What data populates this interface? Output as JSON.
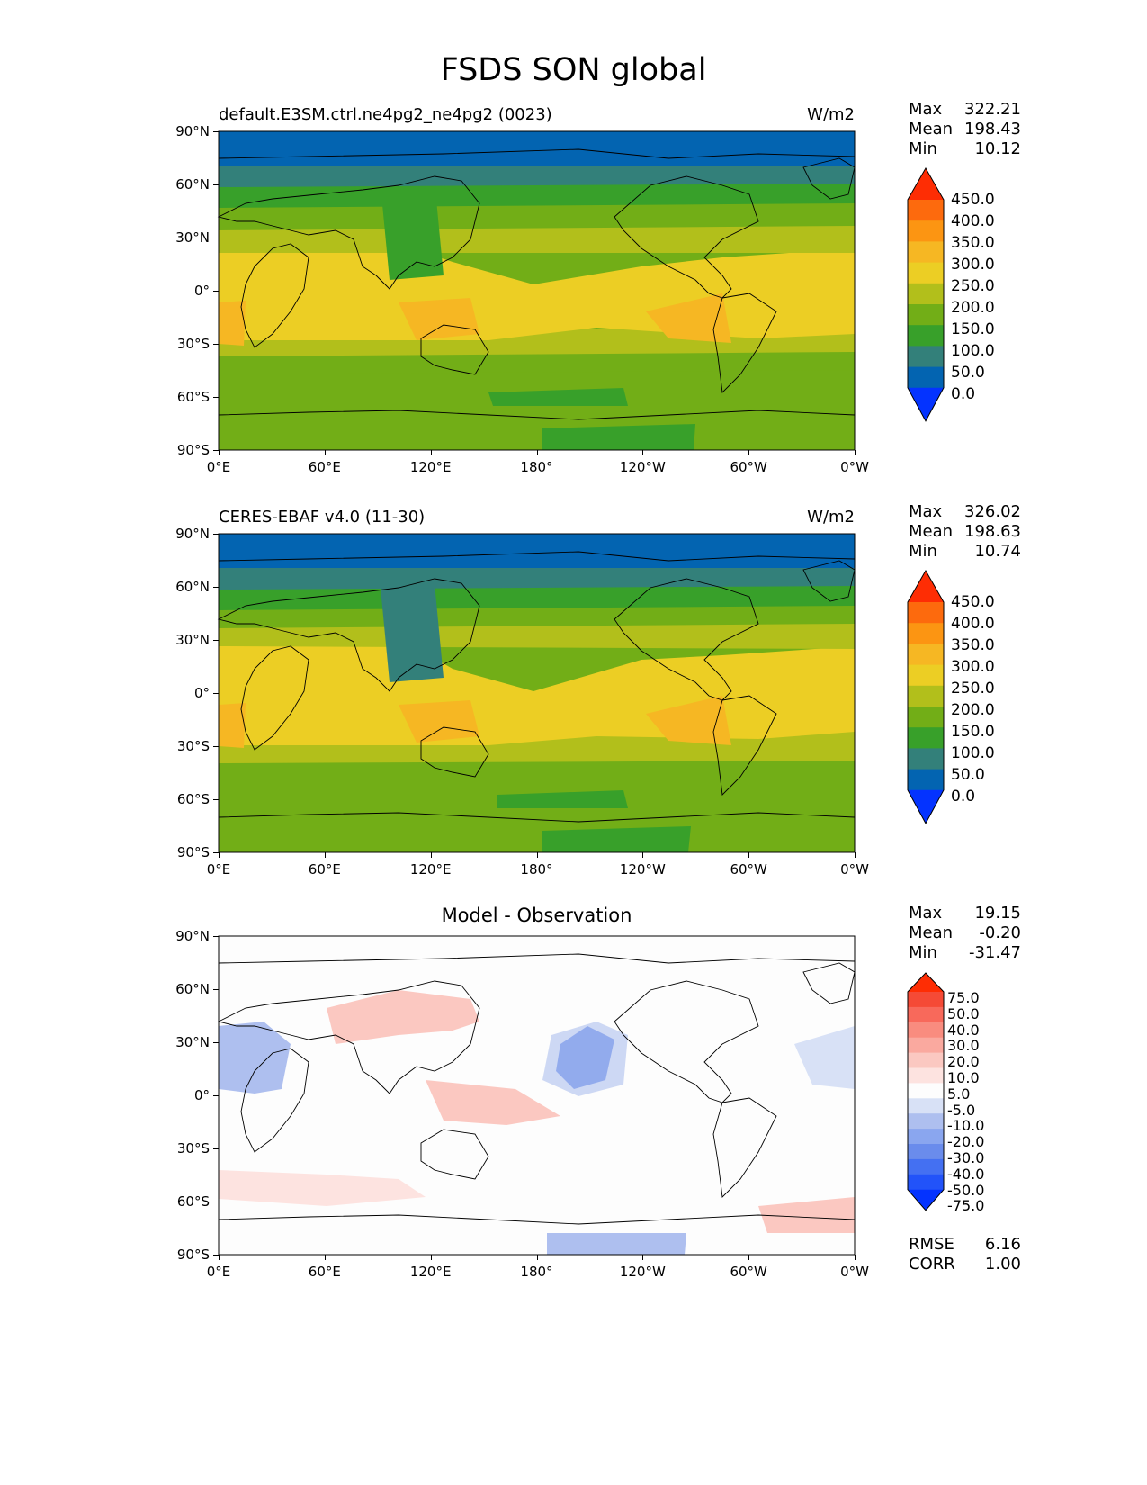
{
  "title": "FSDS SON global",
  "panels": [
    {
      "id": "test",
      "left_label": "default.E3SM.ctrl.ne4pg2_ne4pg2 (0023)",
      "right_label": "W/m2",
      "stats": [
        {
          "k": "Max",
          "v": "322.21"
        },
        {
          "k": "Mean",
          "v": "198.43"
        },
        {
          "k": "Min",
          "v": "10.12"
        }
      ],
      "cb_labels": [
        "450.0",
        "400.0",
        "350.0",
        "300.0",
        "250.0",
        "200.0",
        "150.0",
        "100.0",
        "50.0",
        "0.0"
      ]
    },
    {
      "id": "ref",
      "left_label": "CERES-EBAF v4.0 (11-30)",
      "right_label": "W/m2",
      "stats": [
        {
          "k": "Max",
          "v": "326.02"
        },
        {
          "k": "Mean",
          "v": "198.63"
        },
        {
          "k": "Min",
          "v": "10.74"
        }
      ],
      "cb_labels": [
        "450.0",
        "400.0",
        "350.0",
        "300.0",
        "250.0",
        "200.0",
        "150.0",
        "100.0",
        "50.0",
        "0.0"
      ]
    },
    {
      "id": "diff",
      "center_label": "Model - Observation",
      "stats": [
        {
          "k": "Max",
          "v": "19.15"
        },
        {
          "k": "Mean",
          "v": "-0.20"
        },
        {
          "k": "Min",
          "v": "-31.47"
        }
      ],
      "cb_labels": [
        "75.0",
        "50.0",
        "40.0",
        "30.0",
        "20.0",
        "10.0",
        "5.0",
        "-5.0",
        "-10.0",
        "-20.0",
        "-30.0",
        "-40.0",
        "-50.0",
        "-75.0"
      ],
      "extra_stats": [
        {
          "k": "RMSE",
          "v": "6.16"
        },
        {
          "k": "CORR",
          "v": "1.00"
        }
      ]
    }
  ],
  "axes": {
    "lat_ticks": [
      "90°N",
      "60°N",
      "30°N",
      "0°",
      "30°S",
      "60°S",
      "90°S"
    ],
    "lon_ticks": [
      "0°E",
      "60°E",
      "120°E",
      "180°",
      "120°W",
      "60°W",
      "0°W"
    ]
  },
  "colors": {
    "abs_levels": [
      "#0433ff",
      "#0364b1",
      "#33807a",
      "#38a02a",
      "#72ae17",
      "#b2bf1b",
      "#ecce24",
      "#f6b723",
      "#fc9512",
      "#fd6a0d",
      "#fe2d04"
    ],
    "diff_levels": [
      "#0433ff",
      "#2253f9",
      "#4470f2",
      "#6a8cec",
      "#8aa6ef",
      "#aebfef",
      "#d8e1f6",
      "#fdfdfd",
      "#fde3e0",
      "#fbc8c1",
      "#faa99f",
      "#f98c7f",
      "#f8695b",
      "#f54a36",
      "#fe2d04"
    ]
  }
}
